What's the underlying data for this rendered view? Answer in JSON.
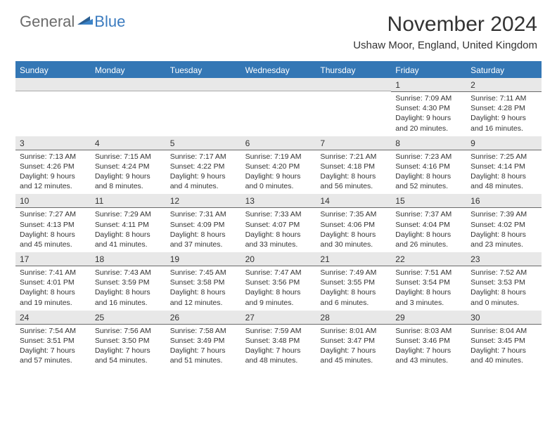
{
  "brand": {
    "part1": "General",
    "part2": "Blue"
  },
  "title": "November 2024",
  "location": "Ushaw Moor, England, United Kingdom",
  "colors": {
    "header_blue": "#3477b5",
    "grey_band": "#e8e8e8",
    "rule": "#6a6a6a",
    "text": "#333333",
    "logo_grey": "#6b6b6b",
    "logo_blue": "#3b7bbf"
  },
  "dayNames": [
    "Sunday",
    "Monday",
    "Tuesday",
    "Wednesday",
    "Thursday",
    "Friday",
    "Saturday"
  ],
  "weeks": [
    [
      {
        "day": "",
        "sunrise": "",
        "sunset": "",
        "daylight": ""
      },
      {
        "day": "",
        "sunrise": "",
        "sunset": "",
        "daylight": ""
      },
      {
        "day": "",
        "sunrise": "",
        "sunset": "",
        "daylight": ""
      },
      {
        "day": "",
        "sunrise": "",
        "sunset": "",
        "daylight": ""
      },
      {
        "day": "",
        "sunrise": "",
        "sunset": "",
        "daylight": ""
      },
      {
        "day": "1",
        "sunrise": "Sunrise: 7:09 AM",
        "sunset": "Sunset: 4:30 PM",
        "daylight": "Daylight: 9 hours and 20 minutes."
      },
      {
        "day": "2",
        "sunrise": "Sunrise: 7:11 AM",
        "sunset": "Sunset: 4:28 PM",
        "daylight": "Daylight: 9 hours and 16 minutes."
      }
    ],
    [
      {
        "day": "3",
        "sunrise": "Sunrise: 7:13 AM",
        "sunset": "Sunset: 4:26 PM",
        "daylight": "Daylight: 9 hours and 12 minutes."
      },
      {
        "day": "4",
        "sunrise": "Sunrise: 7:15 AM",
        "sunset": "Sunset: 4:24 PM",
        "daylight": "Daylight: 9 hours and 8 minutes."
      },
      {
        "day": "5",
        "sunrise": "Sunrise: 7:17 AM",
        "sunset": "Sunset: 4:22 PM",
        "daylight": "Daylight: 9 hours and 4 minutes."
      },
      {
        "day": "6",
        "sunrise": "Sunrise: 7:19 AM",
        "sunset": "Sunset: 4:20 PM",
        "daylight": "Daylight: 9 hours and 0 minutes."
      },
      {
        "day": "7",
        "sunrise": "Sunrise: 7:21 AM",
        "sunset": "Sunset: 4:18 PM",
        "daylight": "Daylight: 8 hours and 56 minutes."
      },
      {
        "day": "8",
        "sunrise": "Sunrise: 7:23 AM",
        "sunset": "Sunset: 4:16 PM",
        "daylight": "Daylight: 8 hours and 52 minutes."
      },
      {
        "day": "9",
        "sunrise": "Sunrise: 7:25 AM",
        "sunset": "Sunset: 4:14 PM",
        "daylight": "Daylight: 8 hours and 48 minutes."
      }
    ],
    [
      {
        "day": "10",
        "sunrise": "Sunrise: 7:27 AM",
        "sunset": "Sunset: 4:13 PM",
        "daylight": "Daylight: 8 hours and 45 minutes."
      },
      {
        "day": "11",
        "sunrise": "Sunrise: 7:29 AM",
        "sunset": "Sunset: 4:11 PM",
        "daylight": "Daylight: 8 hours and 41 minutes."
      },
      {
        "day": "12",
        "sunrise": "Sunrise: 7:31 AM",
        "sunset": "Sunset: 4:09 PM",
        "daylight": "Daylight: 8 hours and 37 minutes."
      },
      {
        "day": "13",
        "sunrise": "Sunrise: 7:33 AM",
        "sunset": "Sunset: 4:07 PM",
        "daylight": "Daylight: 8 hours and 33 minutes."
      },
      {
        "day": "14",
        "sunrise": "Sunrise: 7:35 AM",
        "sunset": "Sunset: 4:06 PM",
        "daylight": "Daylight: 8 hours and 30 minutes."
      },
      {
        "day": "15",
        "sunrise": "Sunrise: 7:37 AM",
        "sunset": "Sunset: 4:04 PM",
        "daylight": "Daylight: 8 hours and 26 minutes."
      },
      {
        "day": "16",
        "sunrise": "Sunrise: 7:39 AM",
        "sunset": "Sunset: 4:02 PM",
        "daylight": "Daylight: 8 hours and 23 minutes."
      }
    ],
    [
      {
        "day": "17",
        "sunrise": "Sunrise: 7:41 AM",
        "sunset": "Sunset: 4:01 PM",
        "daylight": "Daylight: 8 hours and 19 minutes."
      },
      {
        "day": "18",
        "sunrise": "Sunrise: 7:43 AM",
        "sunset": "Sunset: 3:59 PM",
        "daylight": "Daylight: 8 hours and 16 minutes."
      },
      {
        "day": "19",
        "sunrise": "Sunrise: 7:45 AM",
        "sunset": "Sunset: 3:58 PM",
        "daylight": "Daylight: 8 hours and 12 minutes."
      },
      {
        "day": "20",
        "sunrise": "Sunrise: 7:47 AM",
        "sunset": "Sunset: 3:56 PM",
        "daylight": "Daylight: 8 hours and 9 minutes."
      },
      {
        "day": "21",
        "sunrise": "Sunrise: 7:49 AM",
        "sunset": "Sunset: 3:55 PM",
        "daylight": "Daylight: 8 hours and 6 minutes."
      },
      {
        "day": "22",
        "sunrise": "Sunrise: 7:51 AM",
        "sunset": "Sunset: 3:54 PM",
        "daylight": "Daylight: 8 hours and 3 minutes."
      },
      {
        "day": "23",
        "sunrise": "Sunrise: 7:52 AM",
        "sunset": "Sunset: 3:53 PM",
        "daylight": "Daylight: 8 hours and 0 minutes."
      }
    ],
    [
      {
        "day": "24",
        "sunrise": "Sunrise: 7:54 AM",
        "sunset": "Sunset: 3:51 PM",
        "daylight": "Daylight: 7 hours and 57 minutes."
      },
      {
        "day": "25",
        "sunrise": "Sunrise: 7:56 AM",
        "sunset": "Sunset: 3:50 PM",
        "daylight": "Daylight: 7 hours and 54 minutes."
      },
      {
        "day": "26",
        "sunrise": "Sunrise: 7:58 AM",
        "sunset": "Sunset: 3:49 PM",
        "daylight": "Daylight: 7 hours and 51 minutes."
      },
      {
        "day": "27",
        "sunrise": "Sunrise: 7:59 AM",
        "sunset": "Sunset: 3:48 PM",
        "daylight": "Daylight: 7 hours and 48 minutes."
      },
      {
        "day": "28",
        "sunrise": "Sunrise: 8:01 AM",
        "sunset": "Sunset: 3:47 PM",
        "daylight": "Daylight: 7 hours and 45 minutes."
      },
      {
        "day": "29",
        "sunrise": "Sunrise: 8:03 AM",
        "sunset": "Sunset: 3:46 PM",
        "daylight": "Daylight: 7 hours and 43 minutes."
      },
      {
        "day": "30",
        "sunrise": "Sunrise: 8:04 AM",
        "sunset": "Sunset: 3:45 PM",
        "daylight": "Daylight: 7 hours and 40 minutes."
      }
    ]
  ]
}
